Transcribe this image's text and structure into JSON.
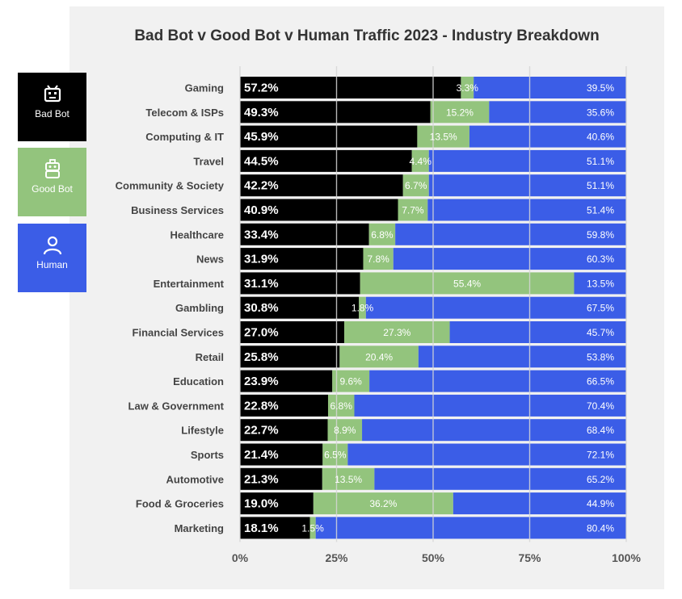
{
  "legend": [
    {
      "label": "Bad Bot",
      "color": "#000000",
      "icon": "bad-bot-icon"
    },
    {
      "label": "Good Bot",
      "color": "#93c47d",
      "icon": "good-bot-icon"
    },
    {
      "label": "Human",
      "color": "#3b5de7",
      "icon": "human-icon"
    }
  ],
  "chart_data": {
    "type": "bar",
    "orientation": "horizontal",
    "stacked": true,
    "title": "Bad Bot v Good Bot v Human Traffic 2023 -  Industry Breakdown",
    "categories": [
      "Gaming",
      "Telecom & ISPs",
      "Computing & IT",
      "Travel",
      "Community & Society",
      "Business Services",
      "Healthcare",
      "News",
      "Entertainment",
      "Gambling",
      "Financial Services",
      "Retail",
      "Education",
      "Law & Government",
      "Lifestyle",
      "Sports",
      "Automotive",
      "Food & Groceries",
      "Marketing"
    ],
    "series": [
      {
        "name": "Bad Bot",
        "color": "#000000",
        "values": [
          57.2,
          49.3,
          45.9,
          44.5,
          42.2,
          40.9,
          33.4,
          31.9,
          31.1,
          30.8,
          27.0,
          25.8,
          23.9,
          22.8,
          22.7,
          21.4,
          21.3,
          19.0,
          18.1
        ]
      },
      {
        "name": "Good Bot",
        "color": "#93c47d",
        "values": [
          3.3,
          15.2,
          13.5,
          4.4,
          6.7,
          7.7,
          6.8,
          7.8,
          55.4,
          1.8,
          27.3,
          20.4,
          9.6,
          6.8,
          8.9,
          6.5,
          13.5,
          36.2,
          1.5
        ]
      },
      {
        "name": "Human",
        "color": "#3b5de7",
        "values": [
          39.5,
          35.6,
          40.6,
          51.1,
          51.1,
          51.4,
          59.8,
          60.3,
          13.5,
          67.5,
          45.7,
          53.8,
          66.5,
          70.4,
          68.4,
          72.1,
          65.2,
          44.9,
          80.4
        ]
      }
    ],
    "xlim": [
      0,
      100
    ],
    "xticks": [
      "0%",
      "25%",
      "50%",
      "75%",
      "100%"
    ],
    "grid": true,
    "legend_position": "left"
  }
}
